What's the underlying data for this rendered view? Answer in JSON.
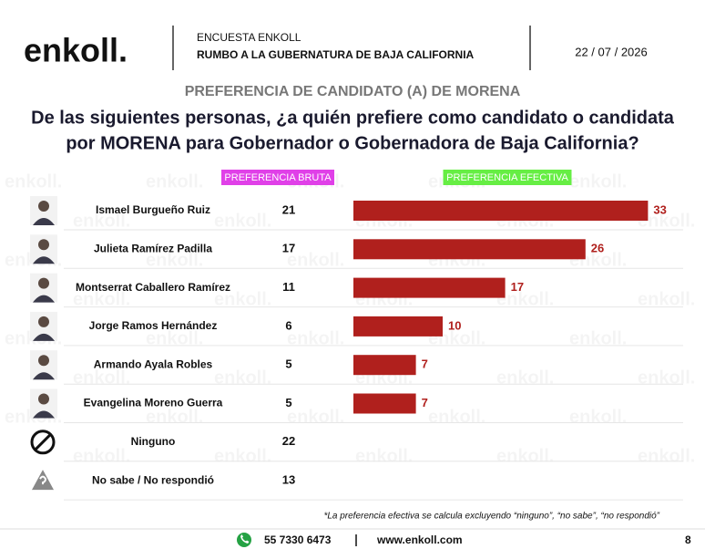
{
  "header": {
    "logo": "enkoll.",
    "survey": "ENCUESTA ENKOLL",
    "topic": "RUMBO A LA GUBERNATURA DE BAJA CALIFORNIA",
    "date": "22 / 07 / 2026"
  },
  "chart_data": {
    "type": "bar",
    "title": "PREFERENCIA DE CANDIDATO (A) DE MORENA",
    "subtitle": [
      "De las siguientes personas, ¿a quién prefiere como candidato o candidata",
      "por MORENA para Gobernador o Gobernadora de Baja California?"
    ],
    "categories": [
      "Ismael Burgueño Ruiz",
      "Julieta Ramírez Padilla",
      "Montserrat Caballero Ramírez",
      "Jorge Ramos Hernández",
      "Armando Ayala Robles",
      "Evangelina Moreno Guerra",
      "Ninguno",
      "No sabe / No respondió"
    ],
    "series": [
      {
        "name": "PREFERENCIA BRUTA",
        "color": "#e040e8",
        "values": [
          21,
          17,
          11,
          6,
          5,
          5,
          22,
          13
        ]
      },
      {
        "name": "PREFERENCIA EFECTIVA",
        "color": "#b0201d",
        "values": [
          33,
          26,
          17,
          10,
          7,
          7,
          null,
          null
        ]
      }
    ],
    "note": "*La preferencia efectiva se calcula excluyendo “ninguno”, “no sabe”, “no respondió”"
  },
  "footer": {
    "phone": "55 7330 6473",
    "website": "www.enkoll.com",
    "page": "8"
  }
}
